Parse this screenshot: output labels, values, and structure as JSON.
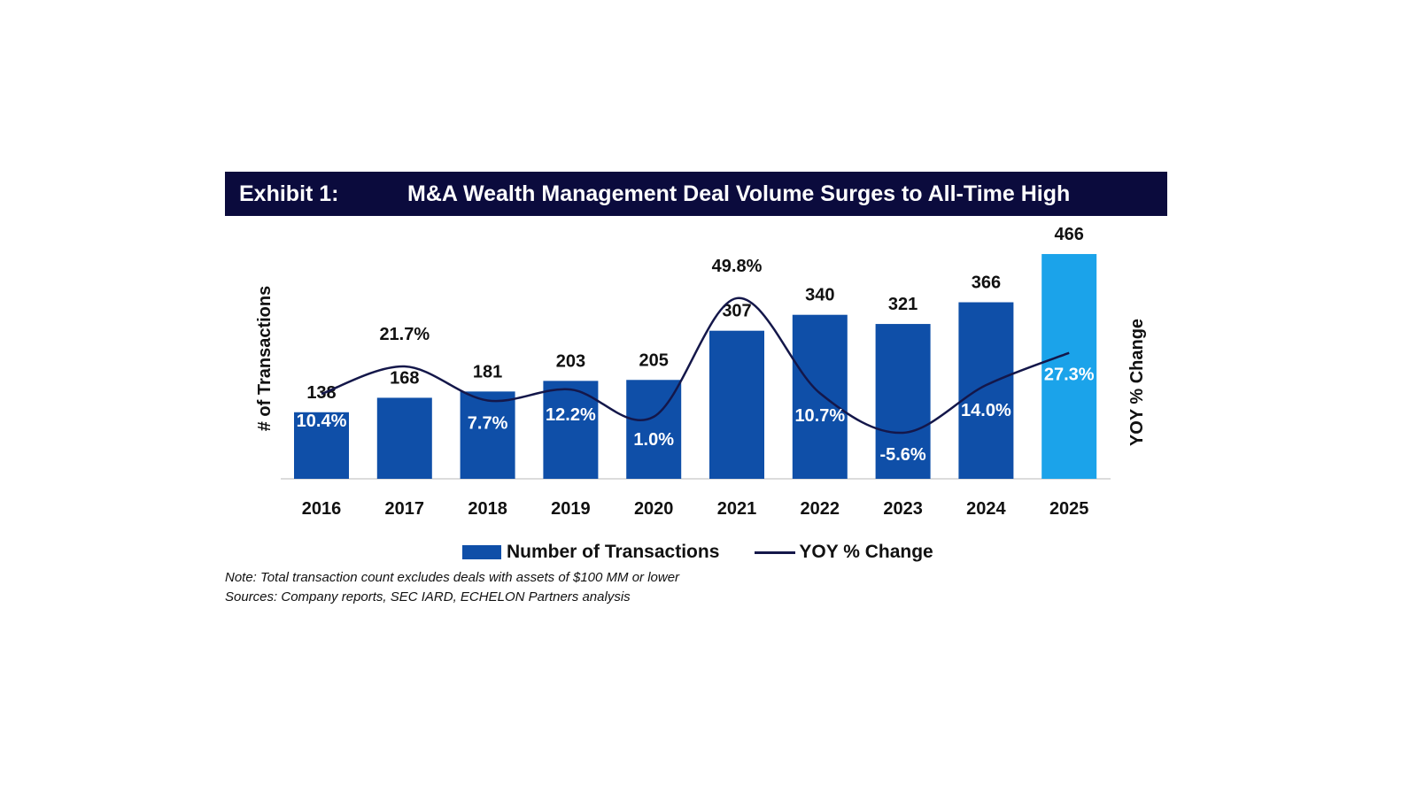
{
  "chart_data": {
    "type": "bar",
    "exhibit": "Exhibit 1:",
    "title": "M&A Wealth Management Deal Volume Surges to All-Time High",
    "categories": [
      "2016",
      "2017",
      "2018",
      "2019",
      "2020",
      "2021",
      "2022",
      "2023",
      "2024",
      "2025"
    ],
    "series": [
      {
        "name": "Number of Transactions",
        "type": "bar",
        "values": [
          138,
          168,
          181,
          203,
          205,
          307,
          340,
          321,
          366,
          466
        ],
        "labels": [
          "138",
          "168",
          "181",
          "203",
          "205",
          "307",
          "340",
          "321",
          "366",
          "466"
        ]
      },
      {
        "name": "YOY % Change",
        "type": "line",
        "values": [
          10.4,
          21.7,
          7.7,
          12.2,
          1.0,
          49.8,
          10.7,
          -5.6,
          14.0,
          27.3
        ],
        "labels": [
          "10.4%",
          "21.7%",
          "7.7%",
          "12.2%",
          "1.0%",
          "49.8%",
          "10.7%",
          "-5.6%",
          "14.0%",
          "27.3%"
        ]
      }
    ],
    "ylabel": "# of Transactions",
    "y2label": "YOY % Change",
    "legend": {
      "position": "bottom",
      "items": [
        "Number of Transactions",
        "YOY % Change"
      ]
    },
    "highlight_year": "2025",
    "colors": {
      "bar": "#0f4fa8",
      "highlight": "#1ba3ea",
      "line": "#14174a",
      "header": "#0b0b3d"
    }
  },
  "notes": {
    "note": "Note: Total transaction count excludes deals with assets of $100 MM or lower",
    "sources": "Sources: Company reports, SEC IARD, ECHELON Partners analysis"
  }
}
